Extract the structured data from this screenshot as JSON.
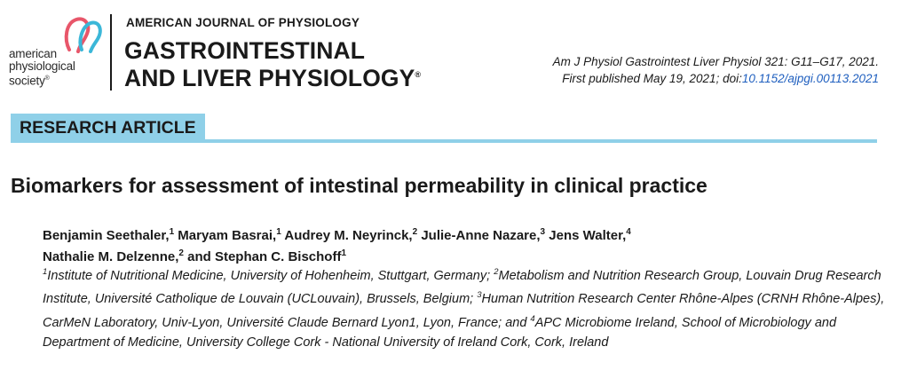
{
  "logo": {
    "lines": [
      "american",
      "physiological",
      "society"
    ],
    "colors": [
      "#e8566a",
      "#3bb7d8"
    ]
  },
  "journal": {
    "kicker": "AMERICAN JOURNAL OF PHYSIOLOGY",
    "line1": "GASTROINTESTINAL",
    "line2": "AND LIVER PHYSIOLOGY"
  },
  "citation": {
    "line1": "Am J Physiol Gastrointest Liver Physiol 321: G11–G17, 2021.",
    "line2_prefix": "First published May 19, 2021; doi:",
    "doi": "10.1152/ajpgi.00113.2021"
  },
  "section_tag": "RESEARCH ARTICLE",
  "title": "Biomarkers for assessment of intestinal permeability in clinical practice",
  "authors_line1": [
    {
      "name": "Benjamin Seethaler,",
      "sup": "1"
    },
    {
      "name": " Maryam Basrai,",
      "sup": "1"
    },
    {
      "name": " Audrey M. Neyrinck,",
      "sup": "2"
    },
    {
      "name": " Julie-Anne Nazare,",
      "sup": "3"
    },
    {
      "name": " Jens Walter,",
      "sup": "4"
    }
  ],
  "authors_line2": [
    {
      "name": "Nathalie M. Delzenne,",
      "sup": "2"
    },
    {
      "name": " and Stephan C. Bischoff",
      "sup": "1"
    }
  ],
  "affiliations": [
    {
      "sup": "1",
      "text": "Institute of Nutritional Medicine, University of Hohenheim, Stuttgart, Germany; "
    },
    {
      "sup": "2",
      "text": "Metabolism and Nutrition Research Group, Louvain Drug Research Institute, Université Catholique de Louvain (UCLouvain), Brussels, Belgium; "
    },
    {
      "sup": "3",
      "text": "Human Nutrition Research Center Rhône-Alpes (CRNH Rhône-Alpes), CarMeN Laboratory, Univ-Lyon, Université Claude Bernard Lyon1, Lyon, France; and "
    },
    {
      "sup": "4",
      "text": "APC Microbiome Ireland, School of Microbiology and Department of Medicine, University College Cork - National University of Ireland Cork, Cork, Ireland"
    }
  ]
}
